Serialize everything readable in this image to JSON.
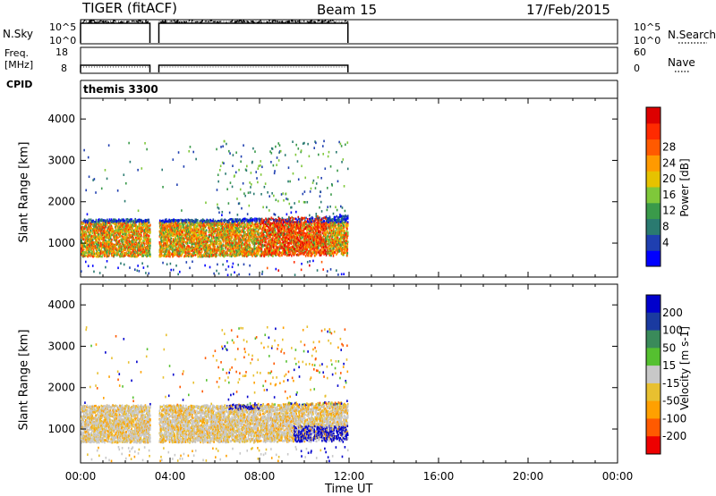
{
  "header": {
    "radar": "TIGER (fitACF)",
    "beam": "Beam 15",
    "date": "17/Feb/2015"
  },
  "strip_panels": {
    "nsky": {
      "label": "N.Sky",
      "left_ticks": [
        "10^5",
        "10^0"
      ],
      "right_ticks": [
        "10^5",
        "10^0"
      ],
      "right_label": "N.Search"
    },
    "freq": {
      "label_line1": "Freq.",
      "label_line2": "[MHz]",
      "left_ticks": [
        "18",
        "8"
      ],
      "right_ticks": [
        "60",
        "0"
      ],
      "right_label": "Nave"
    },
    "cpid": {
      "label": "CPID",
      "value": "themis 3300"
    }
  },
  "chart_data": [
    {
      "type": "heatmap",
      "title": "",
      "xlabel": "",
      "ylabel": "Slant Range [km]",
      "xlim": [
        0,
        24
      ],
      "ylim": [
        180,
        4500
      ],
      "yticks": [
        "1000",
        "2000",
        "3000",
        "4000"
      ],
      "colorbar": {
        "label": "Power [dB]",
        "levels": [
          "4",
          "8",
          "12",
          "16",
          "20",
          "24",
          "28"
        ],
        "colors": [
          "#0000ff",
          "#1f3fb0",
          "#2a7a70",
          "#3a9a4a",
          "#7fc83a",
          "#e6c200",
          "#ff9a00",
          "#ff5a00",
          "#ff2a00",
          "#dd0000"
        ]
      },
      "data_coverage_hours": [
        [
          0.0,
          3.1
        ],
        [
          3.5,
          11.95
        ]
      ],
      "main_echo_band_km": [
        600,
        1600
      ]
    },
    {
      "type": "heatmap",
      "title": "",
      "xlabel": "Time UT",
      "ylabel": "Slant Range [km]",
      "xlim": [
        0,
        24
      ],
      "ylim": [
        180,
        4500
      ],
      "yticks": [
        "1000",
        "2000",
        "3000",
        "4000"
      ],
      "xticks": [
        "00:00",
        "04:00",
        "08:00",
        "12:00",
        "16:00",
        "20:00",
        "00:00"
      ],
      "colorbar": {
        "label": "Velocity [m s-1]",
        "levels": [
          "200",
          "100",
          "50",
          "15",
          "-15",
          "-50",
          "-100",
          "-200"
        ],
        "colors": [
          "#0000cc",
          "#1a3aa0",
          "#3a8a5a",
          "#55c030",
          "#c8c8c8",
          "#e8c030",
          "#ffa000",
          "#ff5a00",
          "#ee0000"
        ]
      },
      "data_coverage_hours": [
        [
          0.0,
          3.1
        ],
        [
          3.5,
          11.95
        ]
      ],
      "main_echo_band_km": [
        600,
        1600
      ]
    }
  ]
}
